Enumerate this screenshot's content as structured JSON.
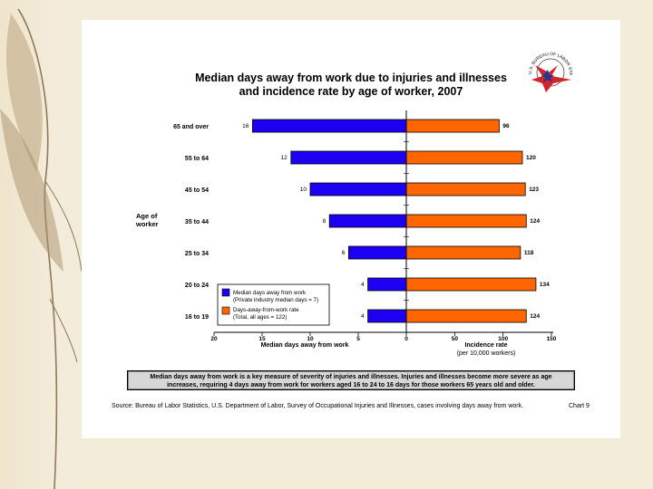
{
  "chart_data": {
    "type": "bar",
    "title_line1": "Median days away from work due to injuries and illnesses",
    "title_line2": "and incidence rate by age of worker, 2007",
    "y_axis_label_line1": "Age of",
    "y_axis_label_line2": "worker",
    "categories": [
      "65 and over",
      "55 to 64",
      "45 to 54",
      "35 to 44",
      "25 to 34",
      "20 to 24",
      "16 to 19"
    ],
    "series": [
      {
        "name": "Median days away from work",
        "values": [
          16,
          12,
          10,
          8,
          6,
          4,
          4
        ],
        "color": "#1d00f2"
      },
      {
        "name": "Days-away-from-work rate",
        "values": [
          96,
          120,
          123,
          124,
          118,
          134,
          124
        ],
        "color": "#ff6600"
      }
    ],
    "left_axis": {
      "xlabel": "Median days away from work",
      "xlim": [
        20,
        0
      ],
      "ticks": [
        "20",
        "15",
        "10",
        "5",
        "0"
      ]
    },
    "right_axis": {
      "xlabel_line1": "Incidence rate",
      "xlabel_line2": "(per 10,000 workers)",
      "xlim": [
        0,
        150
      ],
      "ticks": [
        "0",
        "50",
        "100",
        "150"
      ]
    },
    "legend": [
      {
        "label_line1": "Median days away from work",
        "label_line2": "(Private industry median days = 7)",
        "color": "#1d00f2"
      },
      {
        "label_line1": "Days-away-from-work rate",
        "label_line2": "(Total, all ages = 122)",
        "color": "#ff6600"
      }
    ]
  },
  "note_line1": "Median days away from work is a key measure of severity of injuries and illnesses.  Injuries and illnesses become more severe as age",
  "note_line2": "increases, requiring 4 days away from work for workers aged 16 to 24 to 16 days for those workers 65 years old and older.",
  "source": "Source:  Bureau of Labor Statistics, U.S. Department of Labor, Survey of Occupational Injuries and Illnesses, cases involving days away from work.",
  "chart_number": "Chart 9",
  "logo_text": "U.S. BUREAU OF LABOR STATISTICS"
}
